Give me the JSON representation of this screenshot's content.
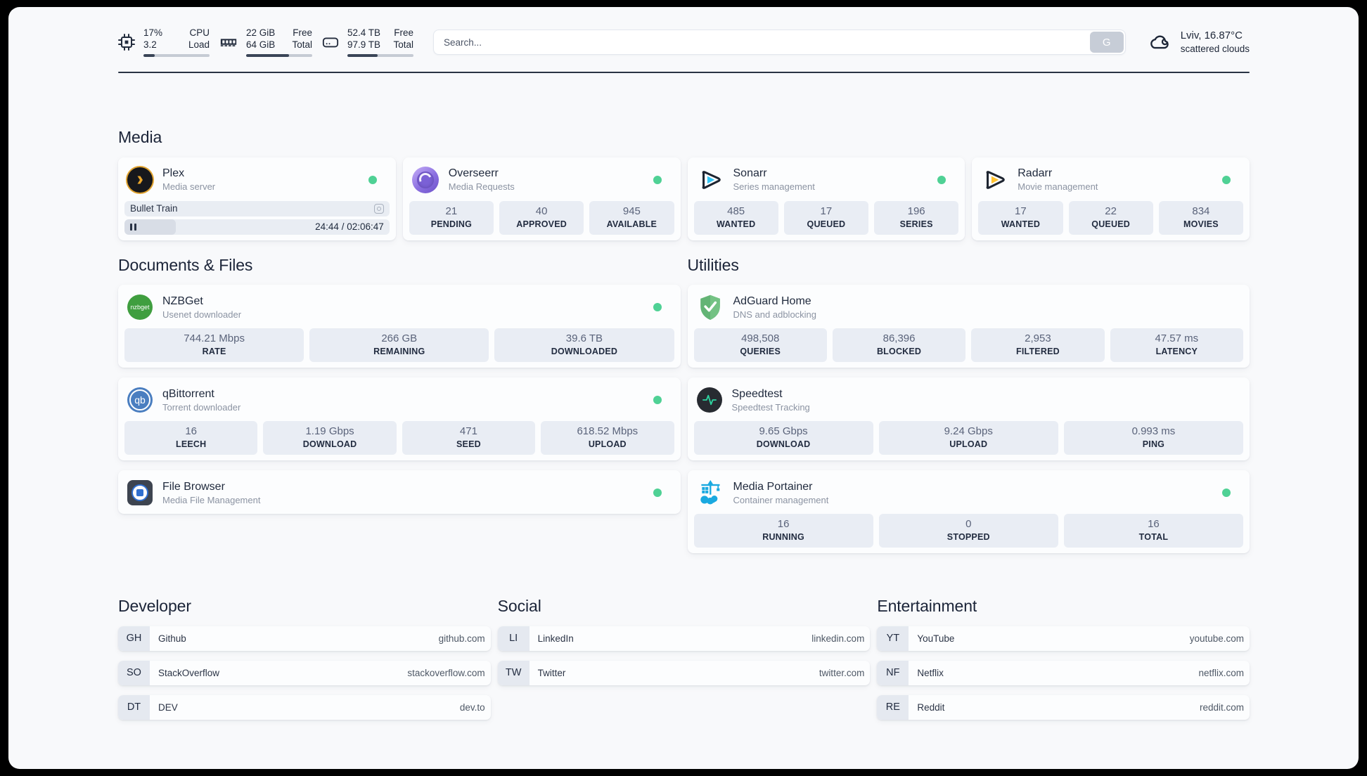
{
  "header": {
    "stats": [
      {
        "icon": "cpu-icon",
        "values": [
          "17%",
          "3.2"
        ],
        "labels": [
          "CPU",
          "Load"
        ],
        "progress": 17
      },
      {
        "icon": "ram-icon",
        "values": [
          "22 GiB",
          "64 GiB"
        ],
        "labels": [
          "Free",
          "Total"
        ],
        "progress": 65
      },
      {
        "icon": "disk-icon",
        "values": [
          "52.4 TB",
          "97.9 TB"
        ],
        "labels": [
          "Free",
          "Total"
        ],
        "progress": 46
      }
    ],
    "search": {
      "placeholder": "Search...",
      "button": "G"
    },
    "weather": {
      "summary": "Lviv, 16.87°C",
      "condition": "scattered clouds"
    }
  },
  "sections": {
    "media": {
      "title": "Media",
      "plex": {
        "name": "Plex",
        "desc": "Media server",
        "now_playing": "Bullet Train",
        "time": "24:44 / 02:06:47",
        "progress": 19.5
      },
      "overseerr": {
        "name": "Overseerr",
        "desc": "Media Requests",
        "stats": [
          {
            "value": "21",
            "label": "PENDING"
          },
          {
            "value": "40",
            "label": "APPROVED"
          },
          {
            "value": "945",
            "label": "AVAILABLE"
          }
        ]
      },
      "sonarr": {
        "name": "Sonarr",
        "desc": "Series management",
        "stats": [
          {
            "value": "485",
            "label": "WANTED"
          },
          {
            "value": "17",
            "label": "QUEUED"
          },
          {
            "value": "196",
            "label": "SERIES"
          }
        ]
      },
      "radarr": {
        "name": "Radarr",
        "desc": "Movie management",
        "stats": [
          {
            "value": "17",
            "label": "WANTED"
          },
          {
            "value": "22",
            "label": "QUEUED"
          },
          {
            "value": "834",
            "label": "MOVIES"
          }
        ]
      }
    },
    "documents": {
      "title": "Documents & Files",
      "nzbget": {
        "name": "NZBGet",
        "desc": "Usenet downloader",
        "icon_text": "nzbget",
        "stats": [
          {
            "value": "744.21 Mbps",
            "label": "RATE"
          },
          {
            "value": "266 GB",
            "label": "REMAINING"
          },
          {
            "value": "39.6 TB",
            "label": "DOWNLOADED"
          }
        ]
      },
      "qbittorrent": {
        "name": "qBittorrent",
        "desc": "Torrent downloader",
        "icon_text": "qb",
        "stats": [
          {
            "value": "16",
            "label": "LEECH"
          },
          {
            "value": "1.19 Gbps",
            "label": "DOWNLOAD"
          },
          {
            "value": "471",
            "label": "SEED"
          },
          {
            "value": "618.52 Mbps",
            "label": "UPLOAD"
          }
        ]
      },
      "filebrowser": {
        "name": "File Browser",
        "desc": "Media File Management"
      }
    },
    "utilities": {
      "title": "Utilities",
      "adguard": {
        "name": "AdGuard Home",
        "desc": "DNS and adblocking",
        "stats": [
          {
            "value": "498,508",
            "label": "QUERIES"
          },
          {
            "value": "86,396",
            "label": "BLOCKED"
          },
          {
            "value": "2,953",
            "label": "FILTERED"
          },
          {
            "value": "47.57 ms",
            "label": "LATENCY"
          }
        ]
      },
      "speedtest": {
        "name": "Speedtest",
        "desc": "Speedtest Tracking",
        "stats": [
          {
            "value": "9.65 Gbps",
            "label": "DOWNLOAD"
          },
          {
            "value": "9.24 Gbps",
            "label": "UPLOAD"
          },
          {
            "value": "0.993 ms",
            "label": "PING"
          }
        ]
      },
      "portainer": {
        "name": "Media Portainer",
        "desc": "Container management",
        "stats": [
          {
            "value": "16",
            "label": "RUNNING"
          },
          {
            "value": "0",
            "label": "STOPPED"
          },
          {
            "value": "16",
            "label": "TOTAL"
          }
        ]
      }
    },
    "developer": {
      "title": "Developer",
      "links": [
        {
          "abbr": "GH",
          "name": "Github",
          "url": "github.com"
        },
        {
          "abbr": "SO",
          "name": "StackOverflow",
          "url": "stackoverflow.com"
        },
        {
          "abbr": "DT",
          "name": "DEV",
          "url": "dev.to"
        }
      ]
    },
    "social": {
      "title": "Social",
      "links": [
        {
          "abbr": "LI",
          "name": "LinkedIn",
          "url": "linkedin.com"
        },
        {
          "abbr": "TW",
          "name": "Twitter",
          "url": "twitter.com"
        }
      ]
    },
    "entertainment": {
      "title": "Entertainment",
      "links": [
        {
          "abbr": "YT",
          "name": "YouTube",
          "url": "youtube.com"
        },
        {
          "abbr": "NF",
          "name": "Netflix",
          "url": "netflix.com"
        },
        {
          "abbr": "RE",
          "name": "Reddit",
          "url": "reddit.com"
        }
      ]
    }
  },
  "colors": {
    "status_online": "#4fd195",
    "plex_amber": "#eaa62b",
    "overseerr_purple": "#7c5cdb",
    "sonarr_cyan": "#35c5f4",
    "radarr_amber": "#ffc230",
    "nzbget_green": "#3f9e3f",
    "qbittorrent_blue": "#4a7ec0",
    "adguard_green": "#63b475",
    "speedtest_pulse": "#2dd4a0",
    "portainer_blue": "#1aa9e0"
  }
}
